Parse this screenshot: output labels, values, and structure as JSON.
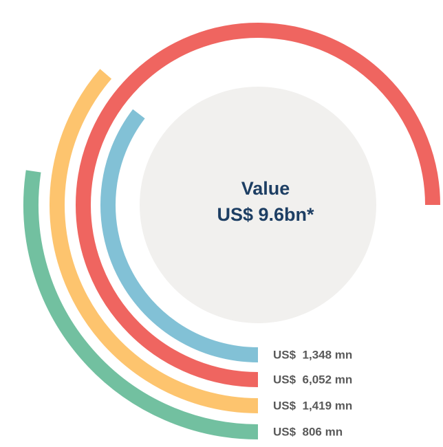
{
  "chart_data": {
    "type": "radial_bar",
    "title": "Value",
    "subtitle": "US$ 9.6bn*",
    "values": [
      1348,
      6052,
      1419,
      806
    ],
    "value_labels": [
      "US$  1,348 mn",
      "US$  6,052 mn",
      "US$  1,419 mn",
      "US$  806 mn"
    ],
    "colors": [
      "#82c1d6",
      "#ef6560",
      "#fdc46e",
      "#72c0a0"
    ]
  }
}
